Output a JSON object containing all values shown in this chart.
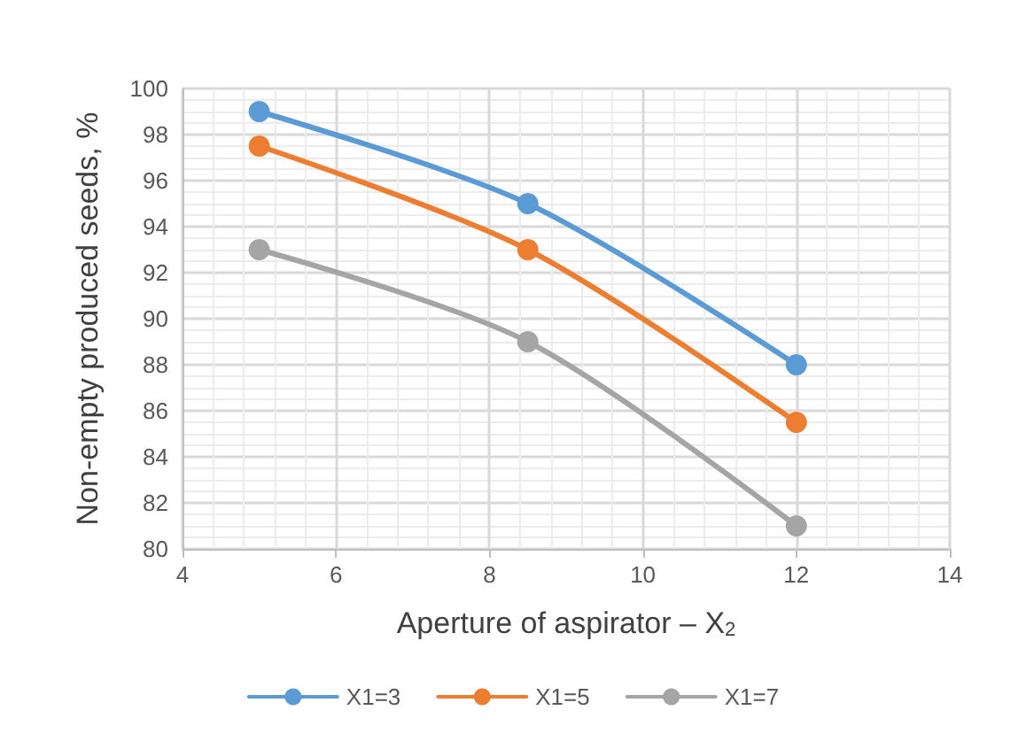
{
  "chart_data": {
    "type": "line",
    "xlabel": "Aperture of aspirator – X$_{2}$",
    "ylabel": "Non-empty produced seeds, %",
    "series": [
      {
        "name": "X1=3",
        "color": "#5b9bd5",
        "x": [
          5,
          8.5,
          12
        ],
        "values": [
          99,
          95,
          88
        ]
      },
      {
        "name": "X1=5",
        "color": "#ed7d31",
        "x": [
          5,
          8.5,
          12
        ],
        "values": [
          97.5,
          93,
          85.5
        ]
      },
      {
        "name": "X1=7",
        "color": "#a5a5a5",
        "x": [
          5,
          8.5,
          12
        ],
        "values": [
          93,
          89,
          81
        ]
      }
    ],
    "xlim": [
      4,
      14
    ],
    "xticks": [
      4,
      6,
      8,
      10,
      12,
      14
    ],
    "ylim": [
      80,
      100
    ],
    "yticks": [
      80,
      82,
      84,
      86,
      88,
      90,
      92,
      94,
      96,
      98,
      100
    ],
    "grid": true,
    "legend": "bottom",
    "marker": "circle",
    "line_style": "solid"
  }
}
